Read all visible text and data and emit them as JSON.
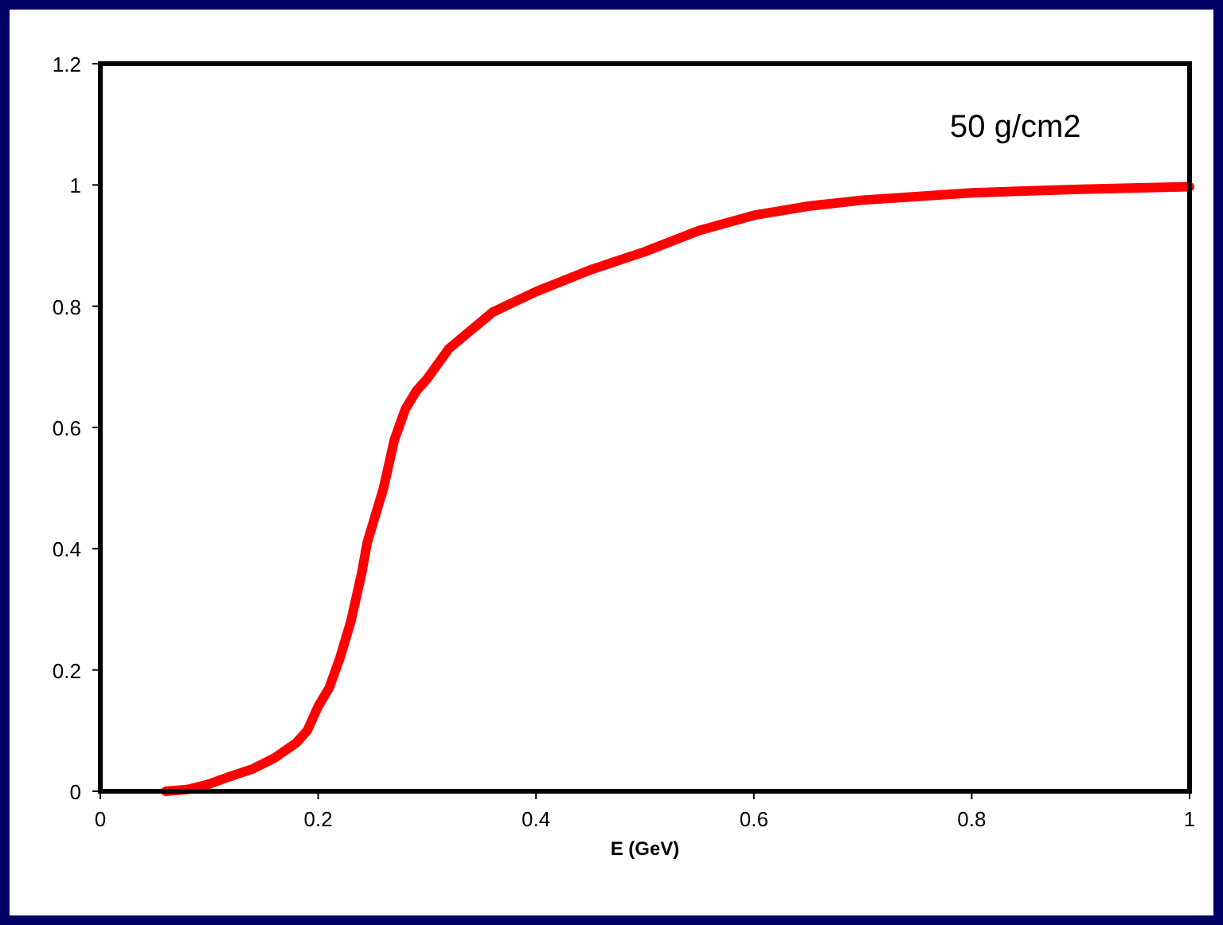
{
  "chart_data": {
    "type": "line",
    "xlabel": "E (GeV)",
    "annotations": [
      "50 g/cm2"
    ],
    "xlim": [
      0,
      1
    ],
    "ylim": [
      0,
      1.2
    ],
    "xticks": [
      0,
      0.2,
      0.4,
      0.6,
      0.8,
      1
    ],
    "yticks": [
      0,
      0.2,
      0.4,
      0.6,
      0.8,
      1,
      1.2
    ],
    "grid": false,
    "marker": "none",
    "line_style": "solid",
    "series": [
      {
        "color": "#ff0000",
        "x": [
          0.06,
          0.08,
          0.1,
          0.12,
          0.14,
          0.16,
          0.18,
          0.19,
          0.2,
          0.21,
          0.22,
          0.23,
          0.24,
          0.245,
          0.26,
          0.27,
          0.28,
          0.29,
          0.3,
          0.32,
          0.36,
          0.4,
          0.45,
          0.5,
          0.55,
          0.6,
          0.65,
          0.7,
          0.8,
          0.9,
          1.0
        ],
        "values": [
          0,
          0.003,
          0.012,
          0.025,
          0.037,
          0.055,
          0.08,
          0.1,
          0.14,
          0.17,
          0.22,
          0.28,
          0.36,
          0.41,
          0.5,
          0.58,
          0.63,
          0.66,
          0.68,
          0.73,
          0.79,
          0.824,
          0.86,
          0.89,
          0.925,
          0.95,
          0.965,
          0.975,
          0.987,
          0.993,
          0.997
        ]
      }
    ]
  }
}
